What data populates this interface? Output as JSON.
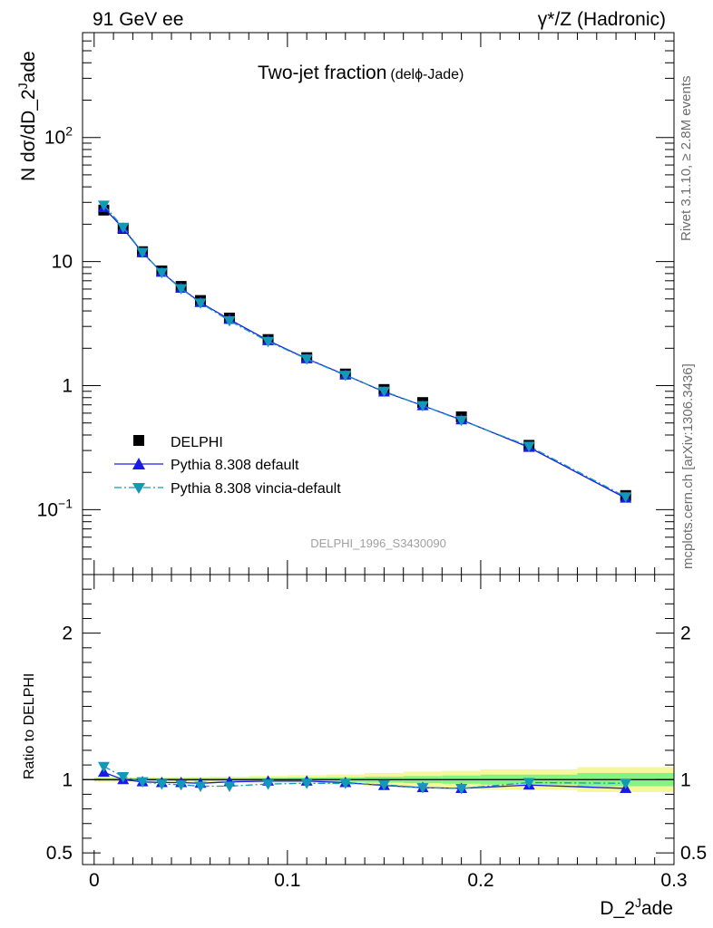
{
  "header": {
    "left": "91 GeV ee",
    "right": "γ*/Z (Hadronic)"
  },
  "side_labels": {
    "rivet": "Rivet 3.1.10, ≥ 2.8M events",
    "mcplots": "mcplots.cern.ch [arXiv:1306.3436]"
  },
  "chart_data": {
    "type": "line",
    "title": "Two-jet fraction",
    "subtitle": "(delϕ-Jade)",
    "watermark": "DELPHI_1996_S3430090",
    "xlabel": "D_2^Jade",
    "ylabel": "N dσ/dD_2^Jade",
    "ratio_ylabel": "Ratio to DELPHI",
    "xlim": [
      -0.006,
      0.3
    ],
    "ylim": [
      0.03,
      700
    ],
    "ylog": true,
    "ratio_ylim": [
      0.42,
      2.4
    ],
    "legend_position": "left",
    "x_ticks": [
      0,
      0.1,
      0.2,
      0.3
    ],
    "x_tick_labels": [
      "0",
      "0.1",
      "0.2",
      "0.3"
    ],
    "y_ticks": [
      {
        "value": 0.1,
        "mantissa": "10",
        "exponent": "−1"
      },
      {
        "value": 1,
        "mantissa": "1",
        "exponent": ""
      },
      {
        "value": 10,
        "mantissa": "10",
        "exponent": ""
      },
      {
        "value": 100,
        "mantissa": "10",
        "exponent": "2"
      }
    ],
    "ratio_y_ticks": [
      {
        "value": 0.5,
        "label": "0.5"
      },
      {
        "value": 1,
        "label": "1"
      },
      {
        "value": 2,
        "label": "2"
      }
    ],
    "x": [
      0.005,
      0.015,
      0.025,
      0.035,
      0.045,
      0.055,
      0.07,
      0.09,
      0.11,
      0.13,
      0.15,
      0.17,
      0.19,
      0.225,
      0.275
    ],
    "bin_edges": [
      0,
      0.01,
      0.02,
      0.03,
      0.04,
      0.05,
      0.06,
      0.08,
      0.1,
      0.12,
      0.14,
      0.16,
      0.18,
      0.2,
      0.25,
      0.3
    ],
    "band_stat": [
      0.01,
      0.01,
      0.01,
      0.01,
      0.01,
      0.01,
      0.01,
      0.012,
      0.014,
      0.016,
      0.02,
      0.024,
      0.028,
      0.034,
      0.045
    ],
    "band_total": [
      0.015,
      0.015,
      0.015,
      0.015,
      0.016,
      0.018,
      0.02,
      0.025,
      0.03,
      0.035,
      0.045,
      0.055,
      0.06,
      0.07,
      0.085
    ],
    "series": [
      {
        "name": "DELPHI",
        "color": "#000000",
        "marker": "square",
        "values": [
          26,
          18.5,
          12.0,
          8.4,
          6.3,
          4.85,
          3.5,
          2.35,
          1.68,
          1.24,
          0.93,
          0.73,
          0.56,
          0.33,
          0.13
        ]
      },
      {
        "name": "Pythia 8.308 default",
        "color": "#1a1ae6",
        "marker": "triangle-up",
        "line": "solid",
        "values": [
          27.2,
          18.5,
          11.8,
          8.2,
          6.1,
          4.68,
          3.42,
          2.31,
          1.65,
          1.22,
          0.89,
          0.69,
          0.53,
          0.318,
          0.124
        ],
        "ratio": [
          1.05,
          1.0,
          0.985,
          0.98,
          0.98,
          0.975,
          0.985,
          0.99,
          0.99,
          0.98,
          0.96,
          0.945,
          0.94,
          0.963,
          0.94
        ]
      },
      {
        "name": "Pythia 8.308 vincia-default",
        "color": "#1299b8",
        "marker": "triangle-down",
        "line": "dashdot",
        "values": [
          28.5,
          18.9,
          11.85,
          8.15,
          6.05,
          4.63,
          3.33,
          2.27,
          1.64,
          1.21,
          0.9,
          0.69,
          0.525,
          0.325,
          0.127
        ],
        "ratio": [
          1.09,
          1.02,
          0.985,
          0.97,
          0.965,
          0.955,
          0.955,
          0.97,
          0.975,
          0.975,
          0.965,
          0.945,
          0.94,
          0.98,
          0.975
        ]
      }
    ]
  },
  "colors": {
    "band_stat": "#84f384",
    "band_total": "#f6f69a",
    "axis": "#000000",
    "watermark": "#a0a0a0",
    "side_text": "#6e6e6e"
  }
}
